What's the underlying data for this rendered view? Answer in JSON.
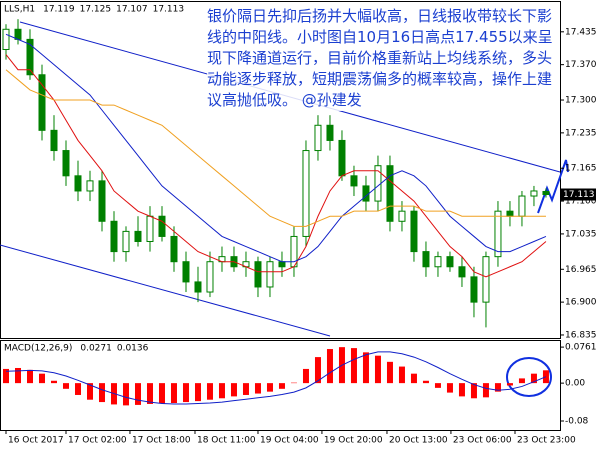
{
  "chart_data": [
    {
      "type": "candlestick",
      "title": "LLS,H1",
      "header_values": [
        17.119,
        17.125,
        17.107,
        17.113
      ],
      "current_price": 17.113,
      "annotation": "银价隔日先抑后扬并大幅收高，日线报收带较长下影线的中阳线。小时图自10月16日高点17.455以来呈现下降通道运行，目前价格重新站上均线系统，多头动能逐步释放，短期震荡偏多的概率较高，操作上建议高抛低吸。 @孙建发",
      "x": [
        0,
        1,
        2,
        3,
        4,
        5,
        6,
        7,
        8,
        9,
        10,
        11,
        12,
        13,
        14,
        15,
        16,
        17,
        18,
        19,
        20,
        21,
        22,
        23,
        24,
        25,
        26,
        27,
        28,
        29,
        30,
        31,
        32,
        33,
        34,
        35,
        36,
        37,
        38,
        39,
        40,
        41,
        42,
        43,
        44,
        45
      ],
      "open": [
        17.4,
        17.44,
        17.42,
        17.35,
        17.24,
        17.2,
        17.15,
        17.12,
        17.14,
        17.06,
        17.0,
        17.04,
        17.02,
        17.07,
        17.03,
        16.98,
        16.94,
        16.92,
        16.98,
        16.99,
        16.97,
        16.98,
        16.93,
        16.98,
        16.97,
        17.03,
        17.2,
        17.25,
        17.22,
        17.15,
        17.13,
        17.1,
        17.17,
        17.06,
        17.08,
        17.0,
        16.97,
        16.99,
        16.97,
        16.95,
        16.9,
        16.99,
        17.08,
        17.07,
        17.11,
        17.119
      ],
      "high": [
        17.45,
        17.46,
        17.44,
        17.37,
        17.27,
        17.22,
        17.18,
        17.16,
        17.16,
        17.08,
        17.05,
        17.07,
        17.09,
        17.09,
        17.05,
        17.0,
        16.97,
        17.0,
        17.01,
        17.01,
        17.0,
        16.99,
        16.99,
        17.0,
        17.05,
        17.22,
        17.27,
        17.27,
        17.24,
        17.17,
        17.15,
        17.19,
        17.19,
        17.1,
        17.09,
        17.02,
        17.0,
        17.0,
        16.99,
        16.97,
        17.0,
        17.1,
        17.1,
        17.12,
        17.13,
        17.125
      ],
      "low": [
        17.38,
        17.41,
        17.34,
        17.22,
        17.18,
        17.13,
        17.1,
        17.1,
        17.04,
        16.98,
        16.98,
        17.01,
        17.0,
        17.02,
        16.96,
        16.92,
        16.9,
        16.91,
        16.96,
        16.96,
        16.95,
        16.91,
        16.91,
        16.95,
        16.95,
        17.01,
        17.18,
        17.2,
        17.14,
        17.11,
        17.08,
        17.08,
        17.04,
        17.04,
        16.98,
        16.95,
        16.95,
        16.96,
        16.93,
        16.87,
        16.85,
        16.97,
        17.05,
        17.05,
        17.09,
        17.107
      ],
      "close": [
        17.44,
        17.42,
        17.35,
        17.24,
        17.2,
        17.15,
        17.12,
        17.14,
        17.06,
        17.0,
        17.04,
        17.02,
        17.07,
        17.03,
        16.98,
        16.94,
        16.92,
        16.98,
        16.99,
        16.97,
        16.98,
        16.93,
        16.98,
        16.97,
        17.03,
        17.2,
        17.25,
        17.22,
        17.15,
        17.13,
        17.1,
        17.17,
        17.06,
        17.08,
        17.0,
        16.97,
        16.99,
        16.97,
        16.95,
        16.9,
        16.99,
        17.08,
        17.07,
        17.11,
        17.12,
        17.113
      ],
      "up_color": "#ffffff",
      "down_color": "#008000",
      "candle_stroke": "#008000",
      "series": [
        {
          "color": "#e01010",
          "values": [
            17.39,
            17.36,
            17.36,
            17.33,
            17.3,
            17.26,
            17.22,
            17.19,
            17.16,
            17.12,
            17.1,
            17.08,
            17.07,
            17.06,
            17.04,
            17.02,
            17.0,
            16.99,
            16.98,
            16.98,
            16.97,
            16.96,
            16.96,
            16.96,
            16.97,
            17.01,
            17.07,
            17.12,
            17.15,
            17.16,
            17.16,
            17.16,
            17.14,
            17.12,
            17.1,
            17.07,
            17.04,
            17.01,
            16.99,
            16.96,
            16.95,
            16.96,
            16.97,
            16.98,
            17.0,
            17.02
          ]
        },
        {
          "color": "#1020c8",
          "values": [
            17.43,
            17.42,
            17.41,
            17.39,
            17.37,
            17.35,
            17.33,
            17.31,
            17.28,
            17.25,
            17.22,
            17.19,
            17.16,
            17.13,
            17.11,
            17.09,
            17.07,
            17.05,
            17.03,
            17.02,
            17.01,
            17.0,
            16.99,
            16.98,
            16.98,
            16.99,
            17.01,
            17.04,
            17.07,
            17.09,
            17.11,
            17.13,
            17.15,
            17.16,
            17.15,
            17.13,
            17.1,
            17.07,
            17.05,
            17.03,
            17.01,
            17.0,
            17.0,
            17.01,
            17.02,
            17.03
          ]
        },
        {
          "color": "#f0a020",
          "values": [
            17.36,
            17.34,
            17.32,
            17.31,
            17.3,
            17.3,
            17.3,
            17.3,
            17.29,
            17.29,
            17.28,
            17.27,
            17.26,
            17.25,
            17.23,
            17.21,
            17.19,
            17.17,
            17.15,
            17.13,
            17.11,
            17.09,
            17.07,
            17.06,
            17.05,
            17.05,
            17.06,
            17.07,
            17.07,
            17.08,
            17.08,
            17.08,
            17.09,
            17.09,
            17.09,
            17.08,
            17.08,
            17.08,
            17.07,
            17.07,
            17.07,
            17.07,
            17.07,
            17.07,
            17.07,
            17.07
          ]
        }
      ],
      "xlim": [
        -0.5,
        46.17
      ],
      "ylim": [
        16.829,
        17.494
      ],
      "yticks": [
        17.435,
        {
          "value": 17.37,
          "label": "17.370"
        },
        {
          "value": 17.3,
          "label": "17.300"
        },
        17.235,
        17.165,
        {
          "value": 17.1,
          "label": "17.100"
        },
        17.035,
        16.965,
        {
          "value": 16.9,
          "label": "16.900"
        },
        16.835
      ],
      "xticks": [
        {
          "value": 0,
          "label": "16 Oct 2017"
        },
        {
          "value": 5,
          "label": "17 Oct 02:00"
        },
        {
          "value": 10.33,
          "label": "17 Oct 18:00"
        },
        {
          "value": 15.75,
          "label": "18 Oct 11:00"
        },
        {
          "value": 21,
          "label": "19 Oct 04:00"
        },
        {
          "value": 26.33,
          "label": "19 Oct 20:00"
        },
        {
          "value": 31.75,
          "label": "20 Oct 13:00"
        },
        {
          "value": 37.08,
          "label": "23 Oct 06:00"
        },
        {
          "value": 42.42,
          "label": "23 Oct 23:00"
        }
      ]
    },
    {
      "type": "macd",
      "title": "MACD(12,26,9)",
      "header_values": [
        0.0271,
        0.0136
      ],
      "histogram": {
        "color": "#ff0000",
        "values": [
          0.03,
          0.032,
          0.028,
          0.02,
          0.005,
          -0.012,
          -0.025,
          -0.035,
          -0.04,
          -0.045,
          -0.047,
          -0.046,
          -0.044,
          -0.043,
          -0.042,
          -0.04,
          -0.038,
          -0.035,
          -0.032,
          -0.028,
          -0.025,
          -0.022,
          -0.018,
          -0.012,
          0.001,
          0.03,
          0.055,
          0.072,
          0.076,
          0.074,
          0.065,
          0.058,
          0.045,
          0.035,
          0.02,
          0.005,
          -0.01,
          -0.02,
          -0.028,
          -0.032,
          -0.03,
          -0.018,
          -0.005,
          0.01,
          0.02,
          0.0271
        ]
      },
      "signal": {
        "color": "#1020c8",
        "values": [
          0.025,
          0.026,
          0.027,
          0.026,
          0.022,
          0.015,
          0.006,
          -0.004,
          -0.014,
          -0.022,
          -0.03,
          -0.036,
          -0.04,
          -0.043,
          -0.044,
          -0.044,
          -0.043,
          -0.042,
          -0.04,
          -0.037,
          -0.034,
          -0.031,
          -0.028,
          -0.024,
          -0.019,
          -0.01,
          0.005,
          0.022,
          0.038,
          0.05,
          0.06,
          0.066,
          0.066,
          0.062,
          0.055,
          0.045,
          0.033,
          0.02,
          0.008,
          -0.003,
          -0.011,
          -0.015,
          -0.013,
          -0.007,
          0.003,
          0.0136
        ]
      },
      "ylim": [
        -0.099,
        0.089
      ],
      "yticks": [
        0.0761,
        {
          "value": 0,
          "label": "0.00"
        },
        -0.08
      ]
    }
  ]
}
